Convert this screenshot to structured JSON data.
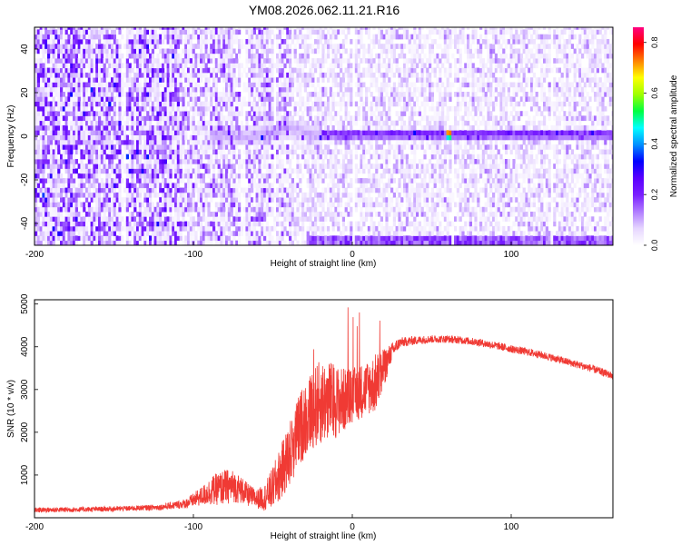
{
  "title": "YM08.2026.062.11.21.R16",
  "colors": {
    "snr_line": "#f03a34",
    "axis": "#000000",
    "colormap": [
      "#ffffff",
      "#e6d6ff",
      "#b07cff",
      "#7a1fff",
      "#5a00ff",
      "#0000ff",
      "#0090ff",
      "#00ffff",
      "#00ff40",
      "#a0ff00",
      "#ffff00",
      "#ff8000",
      "#ff0000",
      "#ff0080"
    ]
  },
  "chart_data": [
    {
      "type": "heatmap",
      "xlabel": "Height of straight line (km)",
      "ylabel": "Frequency (Hz)",
      "xlim": [
        -200,
        164
      ],
      "ylim": [
        -50,
        50
      ],
      "x_ticks": [
        -200,
        -100,
        0,
        100
      ],
      "y_ticks": [
        -40,
        -20,
        0,
        20,
        40
      ],
      "colorbar": {
        "label": "Normalized spectral amplitude",
        "range": [
          0,
          0.86
        ],
        "ticks": [
          0,
          0.2,
          0.4,
          0.6,
          0.8
        ]
      },
      "features": [
        {
          "name": "ridge",
          "x_range": [
            -90,
            164
          ],
          "y": 0,
          "amplitude_max": 0.85,
          "amplitude_peak_x": 60
        },
        {
          "name": "edge_band",
          "x_range": [
            -30,
            164
          ],
          "y": -48
        }
      ]
    },
    {
      "type": "line",
      "xlabel": "Height of straight line (km)",
      "ylabel": "SNR (10 * v/v)",
      "xlim": [
        -200,
        164
      ],
      "ylim": [
        0,
        5100
      ],
      "x_ticks": [
        -200,
        -100,
        0,
        100
      ],
      "y_ticks": [
        1000,
        2000,
        3000,
        4000,
        5000
      ],
      "series": [
        {
          "x": [
            -200,
            -180,
            -160,
            -140,
            -120,
            -105,
            -95,
            -88,
            -80,
            -75,
            -70,
            -65,
            -60,
            -55,
            -50,
            -45,
            -40,
            -35,
            -30,
            -25,
            -20,
            -15,
            -10,
            -5,
            0,
            5,
            10,
            15,
            20,
            25,
            30,
            40,
            50,
            60,
            70,
            80,
            90,
            100,
            110,
            120,
            130,
            140,
            150,
            164
          ],
          "y": [
            180,
            190,
            200,
            220,
            250,
            330,
            500,
            640,
            720,
            740,
            650,
            520,
            440,
            480,
            700,
            1050,
            1450,
            1900,
            2300,
            2550,
            2700,
            2750,
            2720,
            2760,
            2850,
            2950,
            3050,
            3150,
            3500,
            3900,
            4100,
            4150,
            4180,
            4180,
            4150,
            4100,
            4030,
            3950,
            3880,
            3800,
            3700,
            3600,
            3500,
            3320
          ],
          "noise": [
            60,
            60,
            60,
            60,
            70,
            110,
            220,
            350,
            420,
            380,
            320,
            260,
            220,
            320,
            500,
            650,
            750,
            850,
            900,
            950,
            1000,
            950,
            850,
            750,
            650,
            650,
            650,
            700,
            450,
            200,
            120,
            100,
            90,
            90,
            90,
            90,
            90,
            90,
            90,
            90,
            90,
            90,
            90,
            90
          ]
        }
      ]
    }
  ]
}
